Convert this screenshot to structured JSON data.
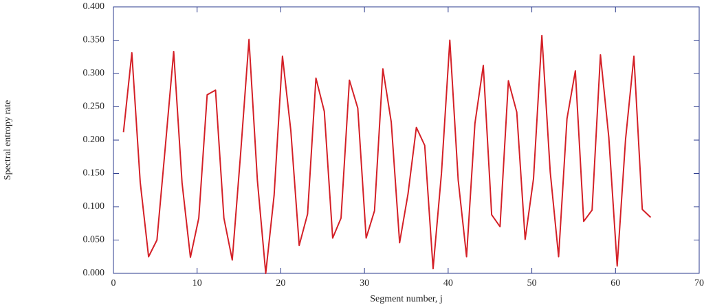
{
  "chart_data": {
    "type": "line",
    "x_label": "Segment number, j",
    "y_label": "Spectral entropy rate",
    "x": [
      1.2,
      2.2,
      3.2,
      4.2,
      5.2,
      6.2,
      7.2,
      8.2,
      9.2,
      10.2,
      11.2,
      12.2,
      13.2,
      14.2,
      15.2,
      16.2,
      17.2,
      18.2,
      19.2,
      20.2,
      21.2,
      22.2,
      23.2,
      24.2,
      25.2,
      26.2,
      27.2,
      28.2,
      29.2,
      30.2,
      31.2,
      32.2,
      33.2,
      34.2,
      35.2,
      36.2,
      37.2,
      38.2,
      39.2,
      40.2,
      41.2,
      42.2,
      43.2,
      44.2,
      45.2,
      46.2,
      47.2,
      48.2,
      49.2,
      50.2,
      51.2,
      52.2,
      53.2,
      54.2,
      55.2,
      56.2,
      57.2,
      58.2,
      59.2,
      60.2,
      61.2,
      62.2,
      63.2,
      64.2
    ],
    "series": [
      {
        "color": "#d42027",
        "values": [
          0.212,
          0.331,
          0.137,
          0.025,
          0.05,
          0.19,
          0.333,
          0.136,
          0.024,
          0.083,
          0.268,
          0.275,
          0.083,
          0.02,
          0.18,
          0.351,
          0.14,
          0.0,
          0.117,
          0.326,
          0.214,
          0.042,
          0.089,
          0.293,
          0.243,
          0.053,
          0.083,
          0.29,
          0.248,
          0.053,
          0.094,
          0.307,
          0.227,
          0.046,
          0.119,
          0.219,
          0.192,
          0.007,
          0.15,
          0.35,
          0.14,
          0.025,
          0.225,
          0.312,
          0.088,
          0.07,
          0.289,
          0.242,
          0.051,
          0.142,
          0.357,
          0.152,
          0.025,
          0.232,
          0.304,
          0.078,
          0.095,
          0.328,
          0.204,
          0.011,
          0.201,
          0.326,
          0.096,
          0.084
        ]
      }
    ],
    "xlim": [
      0,
      70
    ],
    "xticks": [
      0,
      10,
      20,
      30,
      40,
      50,
      60,
      70
    ],
    "ylim": [
      0,
      0.4
    ],
    "yticks": [
      {
        "value": 0,
        "label": "0.000"
      },
      {
        "value": 0.05,
        "label": "0.050"
      },
      {
        "value": 0.1,
        "label": "0.100"
      },
      {
        "value": 0.15,
        "label": "0.150"
      },
      {
        "value": 0.2,
        "label": "0.200"
      },
      {
        "value": 0.25,
        "label": "0.250"
      },
      {
        "value": 0.3,
        "label": "0.300"
      },
      {
        "value": 0.35,
        "label": "0.350"
      },
      {
        "value": 0.4,
        "label": "0.400"
      }
    ],
    "frame_color": "#2a3a8c"
  }
}
